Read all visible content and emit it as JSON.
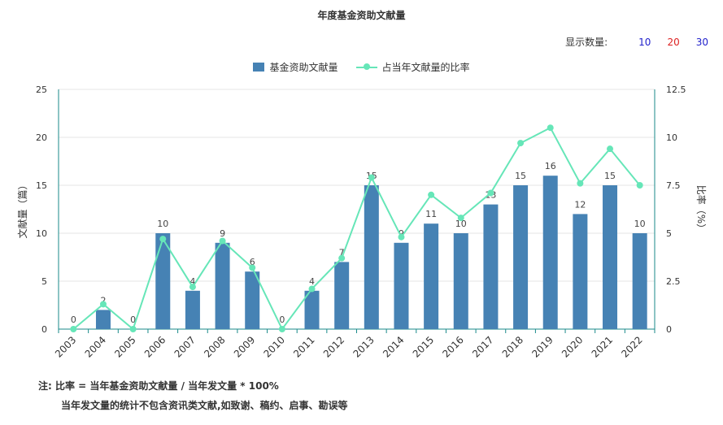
{
  "header": {
    "title": "年度基金资助文献量"
  },
  "count_selector": {
    "label": "显示数量:",
    "options": [
      {
        "label": "10",
        "color": "#2222cc"
      },
      {
        "label": "20",
        "color": "#dd2222"
      },
      {
        "label": "30",
        "color": "#2222cc"
      }
    ]
  },
  "legend": {
    "bar_label": "基金资助文献量",
    "line_label": "占当年文献量的比率"
  },
  "notes": {
    "line1": "注:  比率 = 当年基金资助文献量 / 当年发文量 * 100%",
    "line2": "当年发文量的统计不包含资讯类文献,如致谢、稿约、启事、勘误等"
  },
  "colors": {
    "bar": "#4682b4",
    "line": "#66e6b8",
    "axis": "#1a8a8a",
    "grid": "#e6e6e6"
  },
  "chart_data": {
    "type": "bar",
    "title": "年度基金资助文献量",
    "categories": [
      "2003",
      "2004",
      "2005",
      "2006",
      "2007",
      "2008",
      "2009",
      "2010",
      "2011",
      "2012",
      "2013",
      "2014",
      "2015",
      "2016",
      "2017",
      "2018",
      "2019",
      "2020",
      "2021",
      "2022"
    ],
    "series": [
      {
        "name": "基金资助文献量",
        "type": "bar",
        "axis": "left",
        "values": [
          0,
          2,
          0,
          10,
          4,
          9,
          6,
          0,
          4,
          7,
          15,
          9,
          11,
          10,
          13,
          15,
          16,
          12,
          15,
          10
        ]
      },
      {
        "name": "占当年文献量的比率",
        "type": "line",
        "axis": "right",
        "values": [
          0,
          1.3,
          0,
          4.7,
          2.2,
          4.6,
          3.2,
          0,
          2.1,
          3.7,
          7.9,
          4.8,
          7.0,
          5.8,
          7.1,
          9.7,
          10.5,
          7.6,
          9.4,
          7.5
        ]
      }
    ],
    "ylabel": "文献量（篇）",
    "ylabel_right": "比率（%）",
    "ylim": [
      0,
      25
    ],
    "ylim_right": [
      0,
      12.5
    ],
    "yticks": [
      "0",
      "5",
      "10",
      "15",
      "20",
      "25"
    ],
    "yticks_right": [
      "0",
      "2.5",
      "5",
      "7.5",
      "10",
      "12.5"
    ],
    "grid": true,
    "legend_position": "top-center"
  }
}
